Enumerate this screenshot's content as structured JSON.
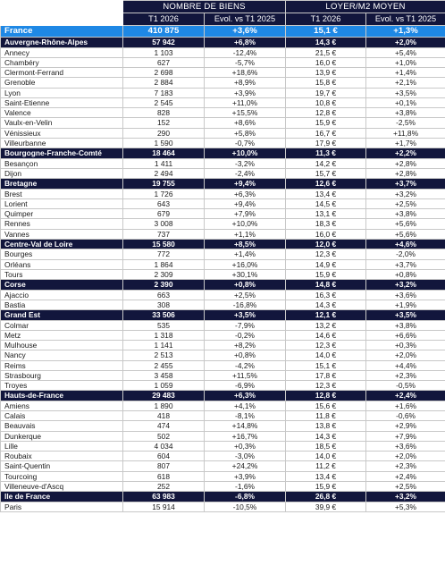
{
  "header": {
    "group_biens": "NOMBRE DE BIENS",
    "group_loyer": "LOYER/M2 MOYEN",
    "sub": [
      "T1 2026",
      "Evol. vs T1 2025",
      "T1 2026",
      "Evol. vs T1 2025"
    ]
  },
  "rows": [
    {
      "type": "country",
      "name": "France",
      "biens": "410 875",
      "evol_biens": "+3,6%",
      "loyer": "15,1 €",
      "evol_loyer": "+1,3%"
    },
    {
      "type": "region",
      "name": "Auvergne-Rhône-Alpes",
      "biens": "57 942",
      "evol_biens": "+6,8%",
      "loyer": "14,3 €",
      "evol_loyer": "+2,0%"
    },
    {
      "type": "city",
      "name": "Annecy",
      "biens": "1 103",
      "evol_biens": "-12,4%",
      "loyer": "21,5 €",
      "evol_loyer": "+5,4%"
    },
    {
      "type": "city",
      "name": "Chambéry",
      "biens": "627",
      "evol_biens": "-5,7%",
      "loyer": "16,0 €",
      "evol_loyer": "+1,0%"
    },
    {
      "type": "city",
      "name": "Clermont-Ferrand",
      "biens": "2 698",
      "evol_biens": "+18,6%",
      "loyer": "13,9 €",
      "evol_loyer": "+1,4%"
    },
    {
      "type": "city",
      "name": "Grenoble",
      "biens": "2 884",
      "evol_biens": "+8,9%",
      "loyer": "15,8 €",
      "evol_loyer": "+2,1%"
    },
    {
      "type": "city",
      "name": "Lyon",
      "biens": "7 183",
      "evol_biens": "+3,9%",
      "loyer": "19,7 €",
      "evol_loyer": "+3,5%"
    },
    {
      "type": "city",
      "name": "Saint-Etienne",
      "biens": "2 545",
      "evol_biens": "+11,0%",
      "loyer": "10,8 €",
      "evol_loyer": "+0,1%"
    },
    {
      "type": "city",
      "name": "Valence",
      "biens": "828",
      "evol_biens": "+15,5%",
      "loyer": "12,8 €",
      "evol_loyer": "+3,8%"
    },
    {
      "type": "city",
      "name": "Vaulx-en-Velin",
      "biens": "152",
      "evol_biens": "+8,6%",
      "loyer": "15,9 €",
      "evol_loyer": "-2,5%"
    },
    {
      "type": "city",
      "name": "Vénissieux",
      "biens": "290",
      "evol_biens": "+5,8%",
      "loyer": "16,7 €",
      "evol_loyer": "+11,8%"
    },
    {
      "type": "city",
      "name": "Villeurbanne",
      "biens": "1 590",
      "evol_biens": "-0,7%",
      "loyer": "17,9 €",
      "evol_loyer": "+1,7%"
    },
    {
      "type": "region",
      "name": "Bourgogne-Franche-Comté",
      "biens": "18 464",
      "evol_biens": "+10,0%",
      "loyer": "11,3 €",
      "evol_loyer": "+2,2%"
    },
    {
      "type": "city",
      "name": "Besançon",
      "biens": "1 411",
      "evol_biens": "-3,2%",
      "loyer": "14,2 €",
      "evol_loyer": "+2,8%"
    },
    {
      "type": "city",
      "name": "Dijon",
      "biens": "2 494",
      "evol_biens": "-2,4%",
      "loyer": "15,7 €",
      "evol_loyer": "+2,8%"
    },
    {
      "type": "region",
      "name": "Bretagne",
      "biens": "19 755",
      "evol_biens": "+9,4%",
      "loyer": "12,6 €",
      "evol_loyer": "+3,7%"
    },
    {
      "type": "city",
      "name": "Brest",
      "biens": "1 726",
      "evol_biens": "+6,3%",
      "loyer": "13,4 €",
      "evol_loyer": "+3,2%"
    },
    {
      "type": "city",
      "name": "Lorient",
      "biens": "643",
      "evol_biens": "+9,4%",
      "loyer": "14,5 €",
      "evol_loyer": "+2,5%"
    },
    {
      "type": "city",
      "name": "Quimper",
      "biens": "679",
      "evol_biens": "+7,9%",
      "loyer": "13,1 €",
      "evol_loyer": "+3,8%"
    },
    {
      "type": "city",
      "name": "Rennes",
      "biens": "3 008",
      "evol_biens": "+10,0%",
      "loyer": "18,3 €",
      "evol_loyer": "+5,6%"
    },
    {
      "type": "city",
      "name": "Vannes",
      "biens": "737",
      "evol_biens": "+1,1%",
      "loyer": "16,0 €",
      "evol_loyer": "+5,6%"
    },
    {
      "type": "region",
      "name": "Centre-Val de Loire",
      "biens": "15 580",
      "evol_biens": "+8,5%",
      "loyer": "12,0 €",
      "evol_loyer": "+4,6%"
    },
    {
      "type": "city",
      "name": "Bourges",
      "biens": "772",
      "evol_biens": "+1,4%",
      "loyer": "12,3 €",
      "evol_loyer": "-2,0%"
    },
    {
      "type": "city",
      "name": "Orléans",
      "biens": "1 864",
      "evol_biens": "+16,0%",
      "loyer": "14,9 €",
      "evol_loyer": "+3,7%"
    },
    {
      "type": "city",
      "name": "Tours",
      "biens": "2 309",
      "evol_biens": "+30,1%",
      "loyer": "15,9 €",
      "evol_loyer": "+0,8%"
    },
    {
      "type": "region",
      "name": "Corse",
      "biens": "2 390",
      "evol_biens": "+0,8%",
      "loyer": "14,8 €",
      "evol_loyer": "+3,2%"
    },
    {
      "type": "city",
      "name": "Ajaccio",
      "biens": "663",
      "evol_biens": "+2,5%",
      "loyer": "16,3 €",
      "evol_loyer": "+3,6%"
    },
    {
      "type": "city",
      "name": "Bastia",
      "biens": "308",
      "evol_biens": "-16,8%",
      "loyer": "14,3 €",
      "evol_loyer": "+1,9%"
    },
    {
      "type": "region",
      "name": "Grand Est",
      "biens": "33 506",
      "evol_biens": "+3,5%",
      "loyer": "12,1 €",
      "evol_loyer": "+3,5%"
    },
    {
      "type": "city",
      "name": "Colmar",
      "biens": "535",
      "evol_biens": "-7,9%",
      "loyer": "13,2 €",
      "evol_loyer": "+3,8%"
    },
    {
      "type": "city",
      "name": "Metz",
      "biens": "1 318",
      "evol_biens": "-0,2%",
      "loyer": "14,6 €",
      "evol_loyer": "+6,6%"
    },
    {
      "type": "city",
      "name": "Mulhouse",
      "biens": "1 141",
      "evol_biens": "+8,2%",
      "loyer": "12,3 €",
      "evol_loyer": "+0,3%"
    },
    {
      "type": "city",
      "name": "Nancy",
      "biens": "2 513",
      "evol_biens": "+0,8%",
      "loyer": "14,0 €",
      "evol_loyer": "+2,0%"
    },
    {
      "type": "city",
      "name": "Reims",
      "biens": "2 455",
      "evol_biens": "-4,2%",
      "loyer": "15,1 €",
      "evol_loyer": "+4,4%"
    },
    {
      "type": "city",
      "name": "Strasbourg",
      "biens": "3 458",
      "evol_biens": "+11,5%",
      "loyer": "17,8 €",
      "evol_loyer": "+2,3%"
    },
    {
      "type": "city",
      "name": "Troyes",
      "biens": "1 059",
      "evol_biens": "-6,9%",
      "loyer": "12,3 €",
      "evol_loyer": "-0,5%"
    },
    {
      "type": "region",
      "name": "Hauts-de-France",
      "biens": "29 483",
      "evol_biens": "+6,3%",
      "loyer": "12,8 €",
      "evol_loyer": "+2,4%"
    },
    {
      "type": "city",
      "name": "Amiens",
      "biens": "1 890",
      "evol_biens": "+4,1%",
      "loyer": "15,6 €",
      "evol_loyer": "+1,6%"
    },
    {
      "type": "city",
      "name": "Calais",
      "biens": "418",
      "evol_biens": "-8,1%",
      "loyer": "11,8 €",
      "evol_loyer": "-0,6%"
    },
    {
      "type": "city",
      "name": "Beauvais",
      "biens": "474",
      "evol_biens": "+14,8%",
      "loyer": "13,8 €",
      "evol_loyer": "+2,9%"
    },
    {
      "type": "city",
      "name": "Dunkerque",
      "biens": "502",
      "evol_biens": "+16,7%",
      "loyer": "14,3 €",
      "evol_loyer": "+7,9%"
    },
    {
      "type": "city",
      "name": "Lille",
      "biens": "4 034",
      "evol_biens": "+0,3%",
      "loyer": "18,5 €",
      "evol_loyer": "+3,6%"
    },
    {
      "type": "city",
      "name": "Roubaix",
      "biens": "604",
      "evol_biens": "-3,0%",
      "loyer": "14,0 €",
      "evol_loyer": "+2,0%"
    },
    {
      "type": "city",
      "name": "Saint-Quentin",
      "biens": "807",
      "evol_biens": "+24,2%",
      "loyer": "11,2 €",
      "evol_loyer": "+2,3%"
    },
    {
      "type": "city",
      "name": "Tourcoing",
      "biens": "618",
      "evol_biens": "+3,9%",
      "loyer": "13,4 €",
      "evol_loyer": "+2,4%"
    },
    {
      "type": "city",
      "name": "Villeneuve-d'Ascq",
      "biens": "252",
      "evol_biens": "-1,6%",
      "loyer": "15,9 €",
      "evol_loyer": "+2,5%"
    },
    {
      "type": "region",
      "name": "Ile de France",
      "biens": "63 983",
      "evol_biens": "-6,8%",
      "loyer": "26,8 €",
      "evol_loyer": "+3,2%"
    },
    {
      "type": "city",
      "name": "Paris",
      "biens": "15 914",
      "evol_biens": "-10,5%",
      "loyer": "39,9 €",
      "evol_loyer": "+5,3%"
    }
  ]
}
